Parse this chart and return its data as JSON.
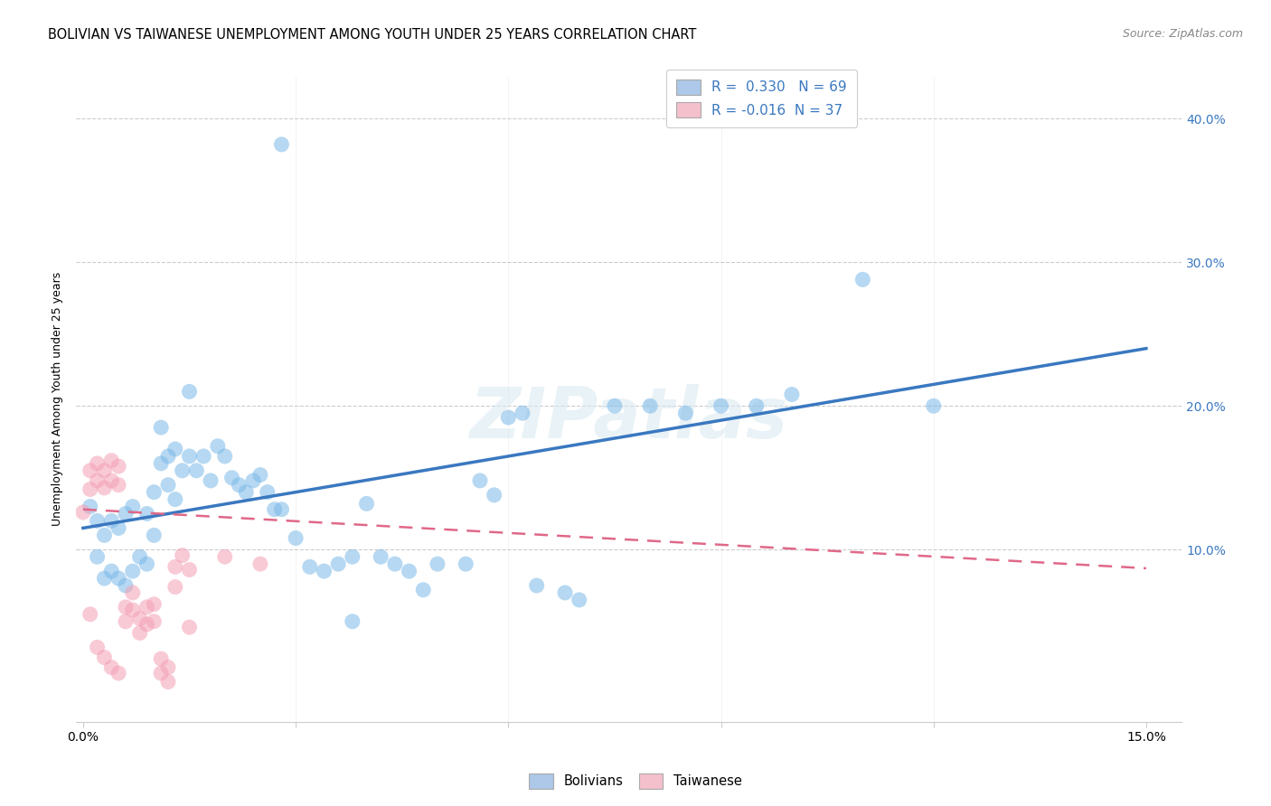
{
  "title": "BOLIVIAN VS TAIWANESE UNEMPLOYMENT AMONG YOUTH UNDER 25 YEARS CORRELATION CHART",
  "source": "Source: ZipAtlas.com",
  "ylabel": "Unemployment Among Youth under 25 years",
  "xlim": [
    -0.001,
    0.155
  ],
  "ylim": [
    -0.02,
    0.43
  ],
  "blue_r": "R =  0.330",
  "blue_n": "N = 69",
  "pink_r": "R = -0.016",
  "pink_n": "N = 37",
  "blue_scatter_color": "#7ab8e8",
  "pink_scatter_color": "#f4a0b5",
  "blue_fill": "#adc8e8",
  "pink_fill": "#f4c0cc",
  "blue_line_color": "#3a78c0",
  "pink_line_color": "#e06888",
  "blue_line_x": [
    0.0,
    0.15
  ],
  "blue_line_y": [
    0.115,
    0.24
  ],
  "pink_line_x": [
    0.0,
    0.15
  ],
  "pink_line_y": [
    0.128,
    0.087
  ],
  "grid_color": "#cccccc",
  "background": "#ffffff",
  "bolivians_x": [
    0.001,
    0.002,
    0.002,
    0.003,
    0.003,
    0.004,
    0.004,
    0.005,
    0.005,
    0.006,
    0.006,
    0.007,
    0.007,
    0.008,
    0.009,
    0.009,
    0.01,
    0.01,
    0.011,
    0.011,
    0.012,
    0.012,
    0.013,
    0.013,
    0.014,
    0.015,
    0.015,
    0.016,
    0.017,
    0.018,
    0.019,
    0.02,
    0.021,
    0.022,
    0.023,
    0.024,
    0.025,
    0.026,
    0.027,
    0.028,
    0.03,
    0.032,
    0.034,
    0.036,
    0.038,
    0.04,
    0.042,
    0.044,
    0.046,
    0.05,
    0.054,
    0.056,
    0.058,
    0.06,
    0.062,
    0.064,
    0.068,
    0.07,
    0.075,
    0.08,
    0.085,
    0.09,
    0.095,
    0.1,
    0.11,
    0.12,
    0.028,
    0.038,
    0.048
  ],
  "bolivians_y": [
    0.13,
    0.12,
    0.095,
    0.11,
    0.08,
    0.12,
    0.085,
    0.115,
    0.08,
    0.125,
    0.075,
    0.13,
    0.085,
    0.095,
    0.125,
    0.09,
    0.14,
    0.11,
    0.185,
    0.16,
    0.165,
    0.145,
    0.17,
    0.135,
    0.155,
    0.21,
    0.165,
    0.155,
    0.165,
    0.148,
    0.172,
    0.165,
    0.15,
    0.145,
    0.14,
    0.148,
    0.152,
    0.14,
    0.128,
    0.128,
    0.108,
    0.088,
    0.085,
    0.09,
    0.095,
    0.132,
    0.095,
    0.09,
    0.085,
    0.09,
    0.09,
    0.148,
    0.138,
    0.192,
    0.195,
    0.075,
    0.07,
    0.065,
    0.2,
    0.2,
    0.195,
    0.2,
    0.2,
    0.208,
    0.288,
    0.2,
    0.382,
    0.05,
    0.072
  ],
  "taiwanese_x": [
    0.0,
    0.001,
    0.001,
    0.001,
    0.002,
    0.002,
    0.002,
    0.003,
    0.003,
    0.003,
    0.004,
    0.004,
    0.004,
    0.005,
    0.005,
    0.005,
    0.006,
    0.006,
    0.007,
    0.007,
    0.008,
    0.008,
    0.009,
    0.009,
    0.01,
    0.01,
    0.011,
    0.011,
    0.012,
    0.012,
    0.013,
    0.013,
    0.014,
    0.015,
    0.015,
    0.02,
    0.025
  ],
  "taiwanese_y": [
    0.126,
    0.155,
    0.142,
    0.055,
    0.16,
    0.148,
    0.032,
    0.155,
    0.143,
    0.025,
    0.162,
    0.148,
    0.018,
    0.158,
    0.145,
    0.014,
    0.06,
    0.05,
    0.07,
    0.058,
    0.052,
    0.042,
    0.06,
    0.048,
    0.062,
    0.05,
    0.024,
    0.014,
    0.018,
    0.008,
    0.088,
    0.074,
    0.096,
    0.086,
    0.046,
    0.095,
    0.09
  ]
}
